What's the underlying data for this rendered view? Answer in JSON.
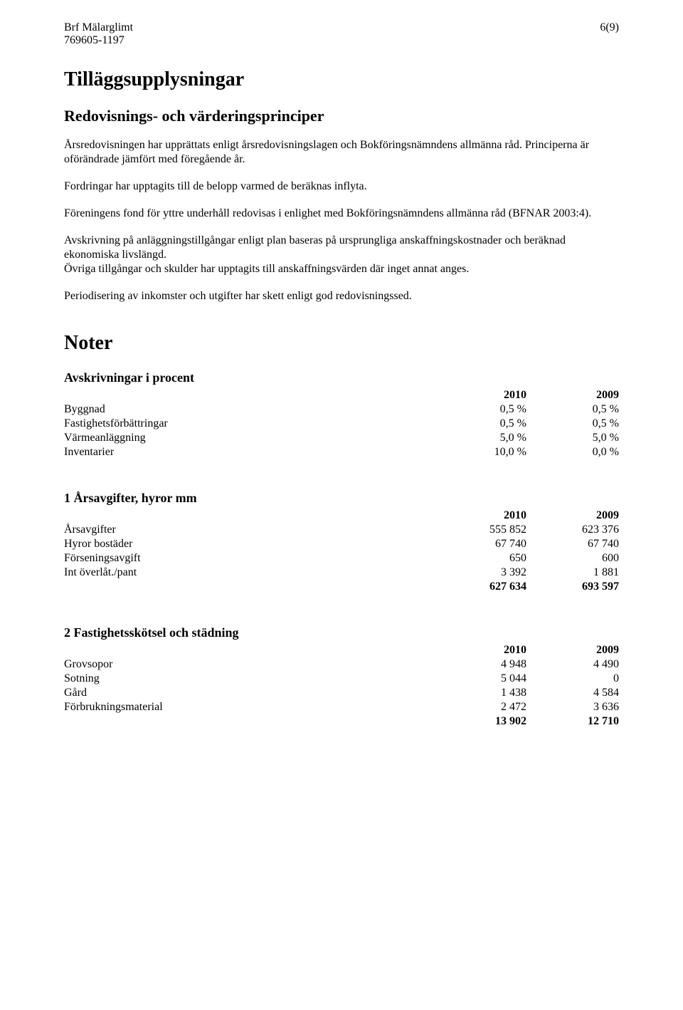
{
  "header": {
    "org_name": "Brf Mälarglimt",
    "org_number": "769605-1197",
    "page": "6(9)"
  },
  "title": "Tilläggsupplysningar",
  "subtitle": "Redovisnings- och värderingsprinciper",
  "paragraphs": {
    "p1": "Årsredovisningen har upprättats enligt årsredovisningslagen och Bokföringsnämndens allmänna råd. Principerna är oförändrade jämfört med föregående år.",
    "p2": "Fordringar har upptagits till de belopp varmed de beräknas inflyta.",
    "p3": "Föreningens fond för yttre underhåll redovisas i enlighet med Bokföringsnämndens allmänna råd (BFNAR 2003:4).",
    "p4": "Avskrivning på anläggningstillgångar enligt plan baseras på ursprungliga anskaffningskostnader och beräknad ekonomiska livslängd.",
    "p5": "Övriga tillgångar och skulder har upptagits till anskaffningsvärden där inget annat anges.",
    "p6": "Periodisering av inkomster och utgifter har skett enligt god redovisningssed."
  },
  "noter_heading": "Noter",
  "tables": {
    "avskrivningar": {
      "title": "Avskrivningar i procent",
      "col1": "2010",
      "col2": "2009",
      "rows": [
        {
          "label": "Byggnad",
          "v1": "0,5 %",
          "v2": "0,5 %"
        },
        {
          "label": "Fastighetsförbättringar",
          "v1": "0,5 %",
          "v2": "0,5 %"
        },
        {
          "label": "Värmeanläggning",
          "v1": "5,0 %",
          "v2": "5,0 %"
        },
        {
          "label": "Inventarier",
          "v1": "10,0 %",
          "v2": "0,0 %"
        }
      ]
    },
    "arsavgifter": {
      "title": "1 Årsavgifter, hyror mm",
      "col1": "2010",
      "col2": "2009",
      "rows": [
        {
          "label": "Årsavgifter",
          "v1": "555 852",
          "v2": "623 376"
        },
        {
          "label": "Hyror bostäder",
          "v1": "67 740",
          "v2": "67 740"
        },
        {
          "label": "Förseningsavgift",
          "v1": "650",
          "v2": "600"
        },
        {
          "label": "Int överlåt./pant",
          "v1": "3 392",
          "v2": "1 881"
        }
      ],
      "total": {
        "v1": "627 634",
        "v2": "693 597"
      }
    },
    "fastighet": {
      "title": "2 Fastighetsskötsel och städning",
      "col1": "2010",
      "col2": "2009",
      "rows": [
        {
          "label": "Grovsopor",
          "v1": "4 948",
          "v2": "4 490"
        },
        {
          "label": "Sotning",
          "v1": "5 044",
          "v2": "0"
        },
        {
          "label": "Gård",
          "v1": "1 438",
          "v2": "4 584"
        },
        {
          "label": "Förbrukningsmaterial",
          "v1": "2 472",
          "v2": "3 636"
        }
      ],
      "total": {
        "v1": "13 902",
        "v2": "12 710"
      }
    }
  }
}
